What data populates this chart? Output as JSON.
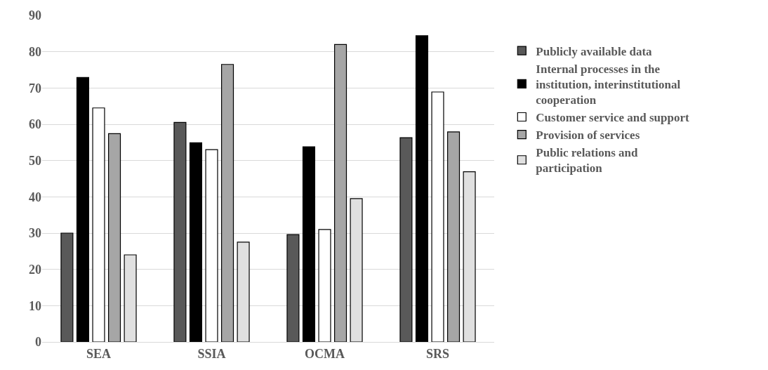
{
  "chart_data": {
    "type": "bar",
    "categories": [
      "SEA",
      "SSIA",
      "OCMA",
      "SRS"
    ],
    "series": [
      {
        "name": "Publicly available data",
        "color": "#595959",
        "values": [
          30,
          60.5,
          29.6,
          56.3
        ]
      },
      {
        "name": "Internal processes in the institution, interinstitutional cooperation",
        "color": "#000000",
        "values": [
          72.9,
          54.9,
          53.8,
          84.4
        ]
      },
      {
        "name": "Customer service and support",
        "color": "#ffffff",
        "values": [
          64.5,
          53,
          31,
          68.9
        ]
      },
      {
        "name": "Provision of services",
        "color": "#a6a6a6",
        "values": [
          57.4,
          76.5,
          82,
          57.9
        ]
      },
      {
        "name": "Public relations and participation",
        "color": "#e0e0e0",
        "values": [
          24,
          27.5,
          39.5,
          46.9
        ]
      }
    ],
    "ylim": [
      0,
      90
    ],
    "yticks": [
      0,
      10,
      20,
      30,
      40,
      50,
      60,
      70,
      80,
      90
    ],
    "grid": "y",
    "legend": "right"
  }
}
